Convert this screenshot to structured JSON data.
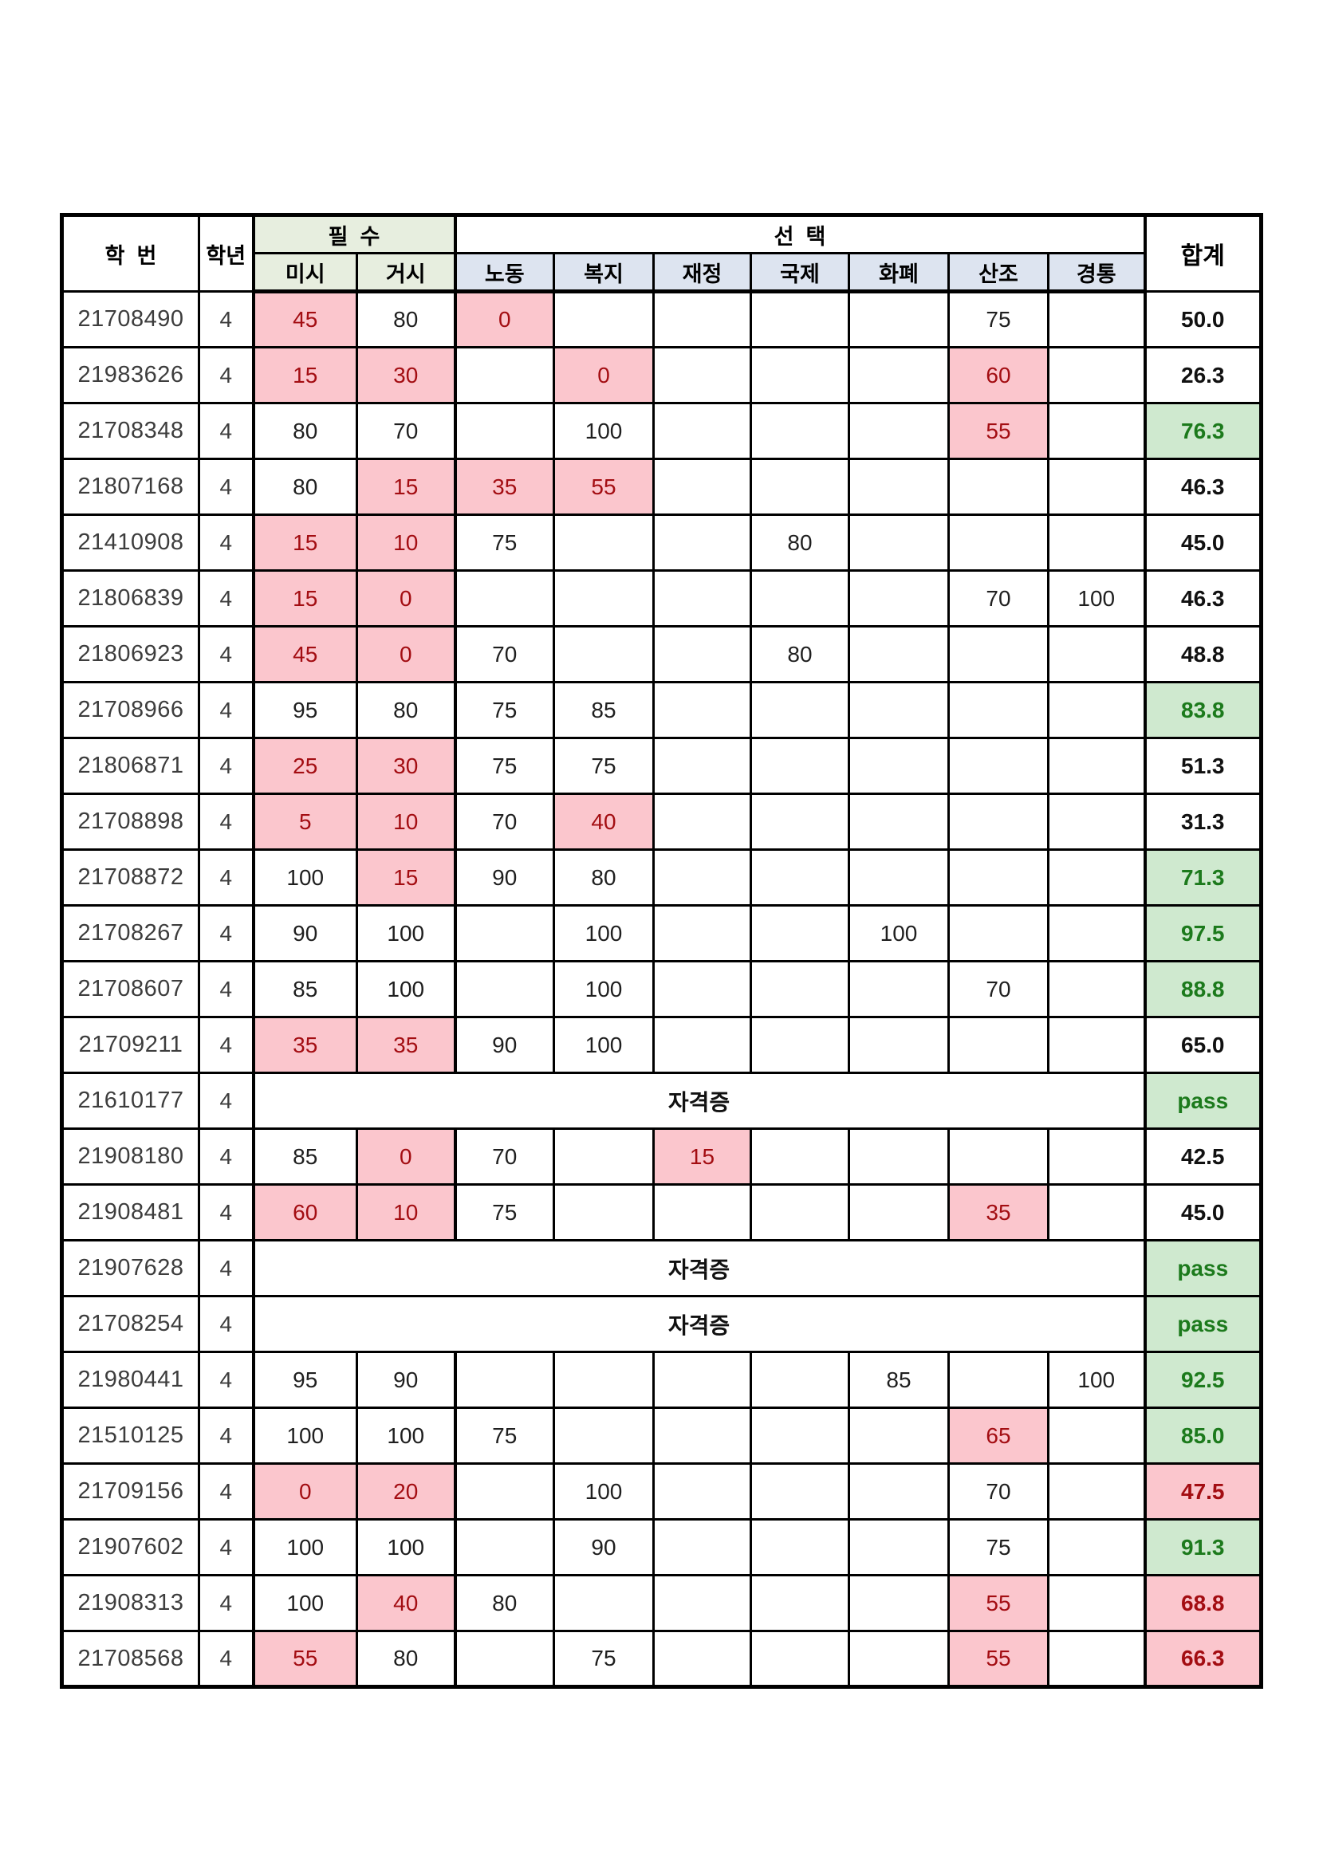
{
  "header": {
    "student_id": "학  번",
    "year": "학년",
    "required": "필  수",
    "elective": "선  택",
    "total": "합계",
    "required_subjects": [
      "미시",
      "거시"
    ],
    "elective_subjects": [
      "노동",
      "복지",
      "재정",
      "국제",
      "화폐",
      "산조",
      "경통"
    ]
  },
  "colors": {
    "required_header_bg": "#e7eedf",
    "elective_header_bg": "#dde4f0",
    "fail_cell_bg": "#fbc6cd",
    "fail_text": "#a30d12",
    "pass_cell_bg": "#cfe9cf",
    "pass_text": "#1c7a1c",
    "grid": "#000000"
  },
  "certificate_label": "자격증",
  "rows": [
    {
      "id": "21708490",
      "year": "4",
      "cells": [
        {
          "v": "45",
          "bad": true
        },
        {
          "v": "80",
          "bad": false
        },
        {
          "v": "0",
          "bad": true
        },
        null,
        null,
        null,
        null,
        {
          "v": "75",
          "bad": false
        },
        null
      ],
      "total": {
        "v": "50.0",
        "style": "plain"
      }
    },
    {
      "id": "21983626",
      "year": "4",
      "cells": [
        {
          "v": "15",
          "bad": true
        },
        {
          "v": "30",
          "bad": true
        },
        null,
        {
          "v": "0",
          "bad": true
        },
        null,
        null,
        null,
        {
          "v": "60",
          "bad": true
        },
        null
      ],
      "total": {
        "v": "26.3",
        "style": "plain"
      }
    },
    {
      "id": "21708348",
      "year": "4",
      "cells": [
        {
          "v": "80",
          "bad": false
        },
        {
          "v": "70",
          "bad": false
        },
        null,
        {
          "v": "100",
          "bad": false
        },
        null,
        null,
        null,
        {
          "v": "55",
          "bad": true
        },
        null
      ],
      "total": {
        "v": "76.3",
        "style": "good"
      }
    },
    {
      "id": "21807168",
      "year": "4",
      "cells": [
        {
          "v": "80",
          "bad": false
        },
        {
          "v": "15",
          "bad": true
        },
        {
          "v": "35",
          "bad": true
        },
        {
          "v": "55",
          "bad": true
        },
        null,
        null,
        null,
        null,
        null
      ],
      "total": {
        "v": "46.3",
        "style": "plain"
      }
    },
    {
      "id": "21410908",
      "year": "4",
      "cells": [
        {
          "v": "15",
          "bad": true
        },
        {
          "v": "10",
          "bad": true
        },
        {
          "v": "75",
          "bad": false
        },
        null,
        null,
        {
          "v": "80",
          "bad": false
        },
        null,
        null,
        null
      ],
      "total": {
        "v": "45.0",
        "style": "plain"
      }
    },
    {
      "id": "21806839",
      "year": "4",
      "cells": [
        {
          "v": "15",
          "bad": true
        },
        {
          "v": "0",
          "bad": true
        },
        null,
        null,
        null,
        null,
        null,
        {
          "v": "70",
          "bad": false
        },
        {
          "v": "100",
          "bad": false
        }
      ],
      "total": {
        "v": "46.3",
        "style": "plain"
      }
    },
    {
      "id": "21806923",
      "year": "4",
      "cells": [
        {
          "v": "45",
          "bad": true
        },
        {
          "v": "0",
          "bad": true
        },
        {
          "v": "70",
          "bad": false
        },
        null,
        null,
        {
          "v": "80",
          "bad": false
        },
        null,
        null,
        null
      ],
      "total": {
        "v": "48.8",
        "style": "plain"
      }
    },
    {
      "id": "21708966",
      "year": "4",
      "cells": [
        {
          "v": "95",
          "bad": false
        },
        {
          "v": "80",
          "bad": false
        },
        {
          "v": "75",
          "bad": false
        },
        {
          "v": "85",
          "bad": false
        },
        null,
        null,
        null,
        null,
        null
      ],
      "total": {
        "v": "83.8",
        "style": "good"
      }
    },
    {
      "id": "21806871",
      "year": "4",
      "cells": [
        {
          "v": "25",
          "bad": true
        },
        {
          "v": "30",
          "bad": true
        },
        {
          "v": "75",
          "bad": false
        },
        {
          "v": "75",
          "bad": false
        },
        null,
        null,
        null,
        null,
        null
      ],
      "total": {
        "v": "51.3",
        "style": "plain"
      }
    },
    {
      "id": "21708898",
      "year": "4",
      "cells": [
        {
          "v": "5",
          "bad": true
        },
        {
          "v": "10",
          "bad": true
        },
        {
          "v": "70",
          "bad": false
        },
        {
          "v": "40",
          "bad": true
        },
        null,
        null,
        null,
        null,
        null
      ],
      "total": {
        "v": "31.3",
        "style": "plain"
      }
    },
    {
      "id": "21708872",
      "year": "4",
      "cells": [
        {
          "v": "100",
          "bad": false
        },
        {
          "v": "15",
          "bad": true
        },
        {
          "v": "90",
          "bad": false
        },
        {
          "v": "80",
          "bad": false
        },
        null,
        null,
        null,
        null,
        null
      ],
      "total": {
        "v": "71.3",
        "style": "good"
      }
    },
    {
      "id": "21708267",
      "year": "4",
      "cells": [
        {
          "v": "90",
          "bad": false
        },
        {
          "v": "100",
          "bad": false
        },
        null,
        {
          "v": "100",
          "bad": false
        },
        null,
        null,
        {
          "v": "100",
          "bad": false
        },
        null,
        null
      ],
      "total": {
        "v": "97.5",
        "style": "good"
      }
    },
    {
      "id": "21708607",
      "year": "4",
      "cells": [
        {
          "v": "85",
          "bad": false
        },
        {
          "v": "100",
          "bad": false
        },
        null,
        {
          "v": "100",
          "bad": false
        },
        null,
        null,
        null,
        {
          "v": "70",
          "bad": false
        },
        null
      ],
      "total": {
        "v": "88.8",
        "style": "good"
      }
    },
    {
      "id": "21709211",
      "year": "4",
      "cells": [
        {
          "v": "35",
          "bad": true
        },
        {
          "v": "35",
          "bad": true
        },
        {
          "v": "90",
          "bad": false
        },
        {
          "v": "100",
          "bad": false
        },
        null,
        null,
        null,
        null,
        null
      ],
      "total": {
        "v": "65.0",
        "style": "plain"
      }
    },
    {
      "id": "21610177",
      "year": "4",
      "merged": "자격증",
      "total": {
        "v": "pass",
        "style": "good"
      }
    },
    {
      "id": "21908180",
      "year": "4",
      "cells": [
        {
          "v": "85",
          "bad": false
        },
        {
          "v": "0",
          "bad": true
        },
        {
          "v": "70",
          "bad": false
        },
        null,
        {
          "v": "15",
          "bad": true
        },
        null,
        null,
        null,
        null
      ],
      "total": {
        "v": "42.5",
        "style": "plain"
      }
    },
    {
      "id": "21908481",
      "year": "4",
      "cells": [
        {
          "v": "60",
          "bad": true
        },
        {
          "v": "10",
          "bad": true
        },
        {
          "v": "75",
          "bad": false
        },
        null,
        null,
        null,
        null,
        {
          "v": "35",
          "bad": true
        },
        null
      ],
      "total": {
        "v": "45.0",
        "style": "plain"
      }
    },
    {
      "id": "21907628",
      "year": "4",
      "merged": "자격증",
      "total": {
        "v": "pass",
        "style": "good"
      }
    },
    {
      "id": "21708254",
      "year": "4",
      "merged": "자격증",
      "total": {
        "v": "pass",
        "style": "good"
      }
    },
    {
      "id": "21980441",
      "year": "4",
      "cells": [
        {
          "v": "95",
          "bad": false
        },
        {
          "v": "90",
          "bad": false
        },
        null,
        null,
        null,
        null,
        {
          "v": "85",
          "bad": false
        },
        null,
        {
          "v": "100",
          "bad": false
        }
      ],
      "total": {
        "v": "92.5",
        "style": "good"
      }
    },
    {
      "id": "21510125",
      "year": "4",
      "cells": [
        {
          "v": "100",
          "bad": false
        },
        {
          "v": "100",
          "bad": false
        },
        {
          "v": "75",
          "bad": false
        },
        null,
        null,
        null,
        null,
        {
          "v": "65",
          "bad": true
        },
        null
      ],
      "total": {
        "v": "85.0",
        "style": "good"
      }
    },
    {
      "id": "21709156",
      "year": "4",
      "cells": [
        {
          "v": "0",
          "bad": true
        },
        {
          "v": "20",
          "bad": true
        },
        null,
        {
          "v": "100",
          "bad": false
        },
        null,
        null,
        null,
        {
          "v": "70",
          "bad": false
        },
        null
      ],
      "total": {
        "v": "47.5",
        "style": "bad"
      }
    },
    {
      "id": "21907602",
      "year": "4",
      "cells": [
        {
          "v": "100",
          "bad": false
        },
        {
          "v": "100",
          "bad": false
        },
        null,
        {
          "v": "90",
          "bad": false
        },
        null,
        null,
        null,
        {
          "v": "75",
          "bad": false
        },
        null
      ],
      "total": {
        "v": "91.3",
        "style": "good"
      }
    },
    {
      "id": "21908313",
      "year": "4",
      "cells": [
        {
          "v": "100",
          "bad": false
        },
        {
          "v": "40",
          "bad": true
        },
        {
          "v": "80",
          "bad": false
        },
        null,
        null,
        null,
        null,
        {
          "v": "55",
          "bad": true
        },
        null
      ],
      "total": {
        "v": "68.8",
        "style": "bad"
      }
    },
    {
      "id": "21708568",
      "year": "4",
      "cells": [
        {
          "v": "55",
          "bad": true
        },
        {
          "v": "80",
          "bad": false
        },
        null,
        {
          "v": "75",
          "bad": false
        },
        null,
        null,
        null,
        {
          "v": "55",
          "bad": true
        },
        null
      ],
      "total": {
        "v": "66.3",
        "style": "bad"
      }
    }
  ]
}
